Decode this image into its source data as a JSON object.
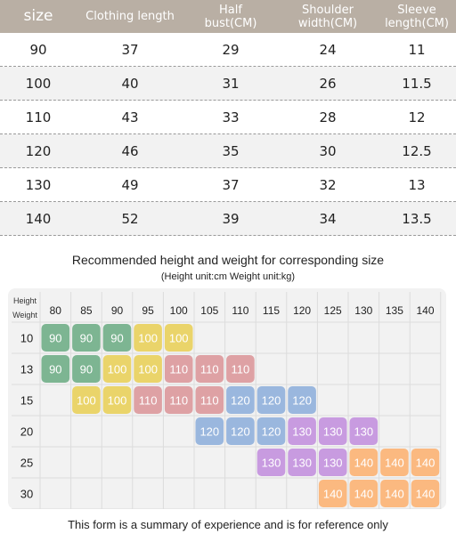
{
  "size_table": {
    "headers": [
      {
        "line1": "size",
        "line2": ""
      },
      {
        "line1": "Clothing length",
        "line2": ""
      },
      {
        "line1": "Half",
        "line2": "bust(CM)"
      },
      {
        "line1": "Shoulder",
        "line2": "width(CM)"
      },
      {
        "line1": "Sleeve",
        "line2": "length(CM)"
      }
    ],
    "rows": [
      [
        "90",
        "37",
        "29",
        "24",
        "11"
      ],
      [
        "100",
        "40",
        "31",
        "26",
        "11.5"
      ],
      [
        "110",
        "43",
        "33",
        "28",
        "12"
      ],
      [
        "120",
        "46",
        "35",
        "30",
        "12.5"
      ],
      [
        "130",
        "49",
        "37",
        "32",
        "13"
      ],
      [
        "140",
        "52",
        "39",
        "34",
        "13.5"
      ]
    ]
  },
  "recommendation": {
    "title": "Recommended height and weight for corresponding size",
    "subtitle": "(Height unit:cm    Weight unit:kg)",
    "corner_top": "Height",
    "corner_bottom": "Weight",
    "heights": [
      "80",
      "85",
      "90",
      "95",
      "100",
      "105",
      "110",
      "115",
      "120",
      "125",
      "130",
      "135",
      "140"
    ],
    "weights": [
      "10",
      "13",
      "15",
      "20",
      "25",
      "30"
    ],
    "size_colors": {
      "90": "#7db592",
      "100": "#ead46a",
      "110": "#dea1a4",
      "120": "#9ab7de",
      "130": "#c89be0",
      "140": "#fbb980"
    },
    "cells": [
      [
        "90",
        "90",
        "90",
        "100",
        "100",
        "",
        "",
        "",
        "",
        "",
        "",
        "",
        ""
      ],
      [
        "90",
        "90",
        "100",
        "100",
        "110",
        "110",
        "110",
        "",
        "",
        "",
        "",
        "",
        ""
      ],
      [
        "",
        "100",
        "100",
        "110",
        "110",
        "110",
        "120",
        "120",
        "120",
        "",
        "",
        "",
        ""
      ],
      [
        "",
        "",
        "",
        "",
        "",
        "120",
        "120",
        "120",
        "130",
        "130",
        "130",
        "",
        ""
      ],
      [
        "",
        "",
        "",
        "",
        "",
        "",
        "",
        "130",
        "130",
        "130",
        "140",
        "140",
        "140"
      ],
      [
        "",
        "",
        "",
        "",
        "",
        "",
        "",
        "",
        "",
        "140",
        "140",
        "140",
        "140"
      ]
    ]
  },
  "footer_note": "This form is a summary of experience and is for reference only"
}
